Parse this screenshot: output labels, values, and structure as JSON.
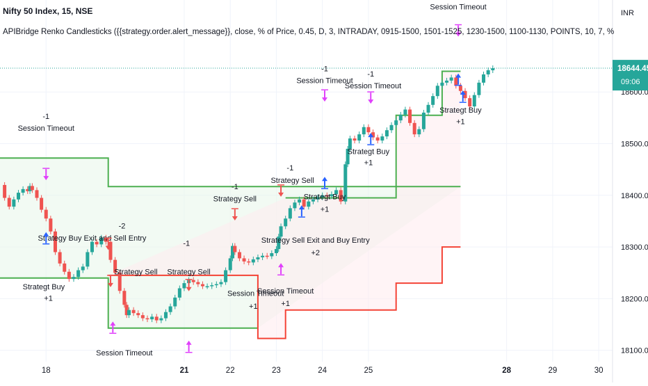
{
  "header": {
    "symbol": "Nifty 50 Index, 15, NSE",
    "indicator": "APIBridge Renko Candlesticks ({{strategy.order.alert_message}}, close, % of Price, 0.45, D, 3, INTRADAY, 0915-1500, 1501-1525, 1230-1500, 1100-1130, POINTS, 10, 7, %, 2, 10, 3, OPTIDX, 07, Jul, 2022, 1, NRML, Market, , 1, 0, 100, )"
  },
  "price_axis": {
    "currency": "INR",
    "last_price": "18644.45",
    "countdown": "09:06"
  },
  "colors": {
    "up": "#26a69a",
    "down": "#ef5350",
    "stop_long": "#4caf50",
    "stop_short": "#f44336",
    "fill_long": "#e8f5e9",
    "fill_short": "#ffebee",
    "buy_arrow": "#2962ff",
    "exit_arrow": "#e040fb",
    "last_price_badge": "#26a69a"
  },
  "chart_data": {
    "type": "line",
    "title": "Nifty 50 Index, 15, NSE",
    "xlabel": "",
    "ylabel": "",
    "x_ticks": [
      "18",
      "21",
      "22",
      "23",
      "24",
      "25",
      "28",
      "29",
      "30"
    ],
    "x_ticks_bold": [
      "21",
      "28"
    ],
    "y_ticks": [
      18100,
      18200,
      18300,
      18400,
      18500,
      18600
    ],
    "y_tick_labels": [
      "18100.00",
      "18200.00",
      "18300.00",
      "18400.00",
      "18500.00",
      "18600.00"
    ],
    "ylim": [
      18078,
      18778
    ],
    "xlim": [
      17.0,
      30.3
    ],
    "grid": true,
    "legend": "none",
    "series": [
      {
        "name": "",
        "role": "price",
        "points": [
          [
            17.0,
            18420
          ],
          [
            17.1,
            18395
          ],
          [
            17.2,
            18378
          ],
          [
            17.3,
            18392
          ],
          [
            17.4,
            18405
          ],
          [
            17.5,
            18412
          ],
          [
            17.6,
            18408
          ],
          [
            17.65,
            18418
          ],
          [
            17.7,
            18410
          ],
          [
            17.8,
            18395
          ],
          [
            17.9,
            18372
          ],
          [
            18.0,
            18355
          ],
          [
            18.1,
            18330
          ],
          [
            18.2,
            18290
          ],
          [
            18.3,
            18268
          ],
          [
            18.4,
            18252
          ],
          [
            18.5,
            18238
          ],
          [
            18.6,
            18242
          ],
          [
            18.7,
            18255
          ],
          [
            18.8,
            18262
          ],
          [
            18.9,
            18290
          ],
          [
            19.0,
            18310
          ],
          [
            19.1,
            18305
          ],
          [
            19.2,
            18318
          ],
          [
            19.3,
            18310
          ],
          [
            19.4,
            18275
          ],
          [
            19.5,
            18250
          ],
          [
            19.6,
            18215
          ],
          [
            19.7,
            18188
          ],
          [
            19.75,
            18168
          ],
          [
            19.8,
            18178
          ],
          [
            19.9,
            18172
          ],
          [
            20.0,
            18168
          ],
          [
            20.1,
            18162
          ],
          [
            20.2,
            18160
          ],
          [
            20.3,
            18165
          ],
          [
            20.4,
            18158
          ],
          [
            20.5,
            18162
          ],
          [
            20.6,
            18174
          ],
          [
            20.7,
            18185
          ],
          [
            20.8,
            18202
          ],
          [
            20.9,
            18220
          ],
          [
            21.0,
            18230
          ],
          [
            21.1,
            18236
          ],
          [
            21.2,
            18232
          ],
          [
            21.3,
            18228
          ],
          [
            21.4,
            18224
          ],
          [
            21.5,
            18224
          ],
          [
            21.6,
            18226
          ],
          [
            21.7,
            18228
          ],
          [
            21.8,
            18232
          ],
          [
            21.9,
            18255
          ],
          [
            22.0,
            18278
          ],
          [
            22.05,
            18302
          ],
          [
            22.1,
            18290
          ],
          [
            22.2,
            18278
          ],
          [
            22.3,
            18272
          ],
          [
            22.4,
            18270
          ],
          [
            22.5,
            18276
          ],
          [
            22.6,
            18280
          ],
          [
            22.7,
            18283
          ],
          [
            22.8,
            18282
          ],
          [
            22.9,
            18288
          ],
          [
            23.0,
            18296
          ],
          [
            23.05,
            18320
          ],
          [
            23.1,
            18340
          ],
          [
            23.2,
            18355
          ],
          [
            23.3,
            18375
          ],
          [
            23.4,
            18386
          ],
          [
            23.5,
            18392
          ],
          [
            23.6,
            18378
          ],
          [
            23.7,
            18388
          ],
          [
            23.8,
            18392
          ],
          [
            23.9,
            18396
          ],
          [
            24.0,
            18400
          ],
          [
            24.1,
            18398
          ],
          [
            24.2,
            18402
          ],
          [
            24.3,
            18410
          ],
          [
            24.4,
            18388
          ],
          [
            24.5,
            18460
          ],
          [
            24.55,
            18490
          ],
          [
            24.6,
            18510
          ],
          [
            24.7,
            18506
          ],
          [
            24.8,
            18518
          ],
          [
            24.9,
            18532
          ],
          [
            25.0,
            18522
          ],
          [
            25.1,
            18512
          ],
          [
            25.2,
            18506
          ],
          [
            25.3,
            18514
          ],
          [
            25.4,
            18526
          ],
          [
            25.5,
            18536
          ],
          [
            25.6,
            18545
          ],
          [
            25.7,
            18556
          ],
          [
            25.8,
            18566
          ],
          [
            25.9,
            18540
          ],
          [
            26.0,
            18518
          ],
          [
            26.1,
            18528
          ],
          [
            26.2,
            18560
          ],
          [
            26.3,
            18575
          ],
          [
            26.4,
            18592
          ],
          [
            26.5,
            18612
          ],
          [
            26.6,
            18618
          ],
          [
            26.7,
            18622
          ],
          [
            26.8,
            18628
          ],
          [
            26.9,
            18612
          ],
          [
            27.0,
            18602
          ],
          [
            27.1,
            18588
          ],
          [
            27.2,
            18572
          ],
          [
            27.3,
            18594
          ],
          [
            27.4,
            18618
          ],
          [
            27.5,
            18634
          ],
          [
            27.6,
            18642
          ],
          [
            27.7,
            18646
          ]
        ]
      },
      {
        "name": "",
        "role": "stop-long",
        "points": [
          [
            17.0,
            18472
          ],
          [
            19.35,
            18472
          ],
          [
            19.35,
            18417
          ],
          [
            27.0,
            18417
          ]
        ]
      },
      {
        "name": "",
        "role": "stop-short",
        "points": [
          [
            19.35,
            18245
          ],
          [
            22.6,
            18245
          ],
          [
            22.6,
            18123
          ],
          [
            23.2,
            18123
          ],
          [
            23.2,
            18178
          ],
          [
            25.6,
            18178
          ],
          [
            25.6,
            18230
          ],
          [
            26.6,
            18230
          ],
          [
            26.6,
            18300
          ],
          [
            27.0,
            18300
          ]
        ]
      },
      {
        "name": "",
        "role": "stop-lower",
        "points": [
          [
            17.0,
            18240
          ],
          [
            19.35,
            18240
          ],
          [
            19.35,
            18143
          ],
          [
            22.6,
            18143
          ]
        ]
      },
      {
        "name": "",
        "role": "stop-upper",
        "points": [
          [
            23.2,
            18395
          ],
          [
            25.6,
            18395
          ],
          [
            25.6,
            18555
          ],
          [
            26.6,
            18555
          ],
          [
            26.6,
            18640
          ],
          [
            27.0,
            18640
          ]
        ]
      }
    ],
    "annotations": [
      {
        "label": "-1",
        "x": 18.0,
        "y": 18548,
        "kind": "text"
      },
      {
        "label": "Session Timeout",
        "x": 18.0,
        "y": 18525,
        "kind": "text"
      },
      {
        "label": "Strategy Buy Exit and Sell Entry",
        "x": 19.0,
        "y": 18312,
        "kind": "text"
      },
      {
        "label": "-2",
        "x": 19.65,
        "y": 18336,
        "kind": "text"
      },
      {
        "label": "Strategt Buy",
        "x": 17.95,
        "y": 18218,
        "kind": "text"
      },
      {
        "label": "+1",
        "x": 18.05,
        "y": 18196,
        "kind": "text"
      },
      {
        "label": "Strategy Sell",
        "x": 19.95,
        "y": 18247,
        "kind": "text"
      },
      {
        "label": "-1",
        "x": 21.05,
        "y": 18302,
        "kind": "text"
      },
      {
        "label": "Strategy Sell",
        "x": 21.1,
        "y": 18247,
        "kind": "text"
      },
      {
        "label": "Session Timeout",
        "x": 19.7,
        "y": 18090,
        "kind": "text"
      },
      {
        "label": "-1",
        "x": 22.1,
        "y": 18412,
        "kind": "text"
      },
      {
        "label": "Strategy Sell",
        "x": 22.1,
        "y": 18388,
        "kind": "text"
      },
      {
        "label": "Session Timeout",
        "x": 22.55,
        "y": 18205,
        "kind": "text"
      },
      {
        "label": "+1",
        "x": 22.5,
        "y": 18180,
        "kind": "text"
      },
      {
        "label": "-1",
        "x": 23.3,
        "y": 18448,
        "kind": "text"
      },
      {
        "label": "Strategy Sell",
        "x": 23.35,
        "y": 18424,
        "kind": "text"
      },
      {
        "label": "Strategy Sell Exit and Buy Entry",
        "x": 23.85,
        "y": 18308,
        "kind": "text"
      },
      {
        "label": "+2",
        "x": 23.85,
        "y": 18284,
        "kind": "text"
      },
      {
        "label": "Session Timeout",
        "x": 23.2,
        "y": 18210,
        "kind": "text"
      },
      {
        "label": "+1",
        "x": 23.2,
        "y": 18186,
        "kind": "text"
      },
      {
        "label": "Strategt Buy",
        "x": 24.05,
        "y": 18392,
        "kind": "text"
      },
      {
        "label": "+1",
        "x": 24.05,
        "y": 18368,
        "kind": "text"
      },
      {
        "label": "-1",
        "x": 24.05,
        "y": 18640,
        "kind": "text"
      },
      {
        "label": "Session Timeout",
        "x": 24.05,
        "y": 18617,
        "kind": "text"
      },
      {
        "label": "-1",
        "x": 25.05,
        "y": 18630,
        "kind": "text"
      },
      {
        "label": "Session Timeout",
        "x": 25.1,
        "y": 18607,
        "kind": "text"
      },
      {
        "label": "Strategt Buy",
        "x": 25.0,
        "y": 18480,
        "kind": "text"
      },
      {
        "label": "+1",
        "x": 25.0,
        "y": 18458,
        "kind": "text"
      },
      {
        "label": "Session Timeout",
        "x": 26.95,
        "y": 18760,
        "kind": "text"
      },
      {
        "label": "Strategt Buy",
        "x": 27.0,
        "y": 18560,
        "kind": "text"
      },
      {
        "label": "+1",
        "x": 27.0,
        "y": 18538,
        "kind": "text"
      },
      {
        "label": "",
        "x": 18.0,
        "y": 18440,
        "kind": "exit-down"
      },
      {
        "label": "",
        "x": 18.0,
        "y": 18318,
        "kind": "buy-up"
      },
      {
        "label": "",
        "x": 19.35,
        "y": 18305,
        "kind": "sell-down"
      },
      {
        "label": "",
        "x": 19.4,
        "y": 18233,
        "kind": "sell-down"
      },
      {
        "label": "",
        "x": 19.45,
        "y": 18145,
        "kind": "exit-up"
      },
      {
        "label": "",
        "x": 21.1,
        "y": 18225,
        "kind": "sell-down"
      },
      {
        "label": "",
        "x": 21.1,
        "y": 18108,
        "kind": "exit-up"
      },
      {
        "label": "",
        "x": 22.1,
        "y": 18362,
        "kind": "sell-down"
      },
      {
        "label": "",
        "x": 23.1,
        "y": 18408,
        "kind": "sell-down"
      },
      {
        "label": "",
        "x": 23.1,
        "y": 18258,
        "kind": "exit-up"
      },
      {
        "label": "",
        "x": 23.55,
        "y": 18370,
        "kind": "buy-up"
      },
      {
        "label": "",
        "x": 24.05,
        "y": 18425,
        "kind": "buy-up"
      },
      {
        "label": "",
        "x": 24.05,
        "y": 18592,
        "kind": "exit-down"
      },
      {
        "label": "",
        "x": 25.05,
        "y": 18588,
        "kind": "exit-down"
      },
      {
        "label": "",
        "x": 25.05,
        "y": 18510,
        "kind": "buy-up"
      },
      {
        "label": "",
        "x": 26.95,
        "y": 18718,
        "kind": "exit-down"
      },
      {
        "label": "",
        "x": 26.95,
        "y": 18625,
        "kind": "buy-up"
      },
      {
        "label": "",
        "x": 27.05,
        "y": 18592,
        "kind": "buy-up"
      }
    ]
  }
}
